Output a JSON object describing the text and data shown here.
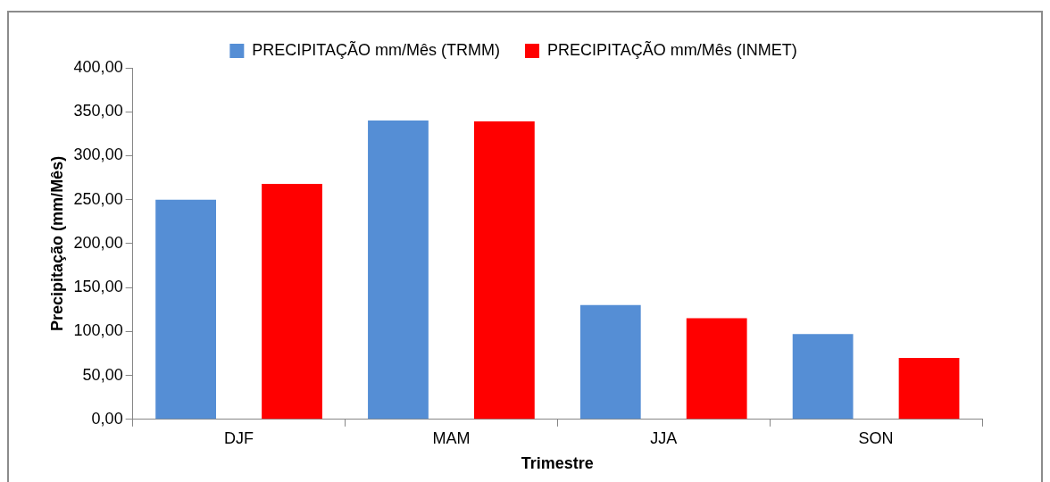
{
  "chart_data": {
    "type": "bar",
    "xlabel": "Trimestre",
    "ylabel": "Precipitação (mm/Mês)",
    "categories": [
      "DJF",
      "MAM",
      "JJA",
      "SON"
    ],
    "series": [
      {
        "name": "PRECIPITAÇÃO mm/Mês (TRMM)",
        "color": "#558ed5",
        "values": [
          250,
          340,
          130,
          97
        ]
      },
      {
        "name": "PRECIPITAÇÃO mm/Mês (INMET)",
        "color": "#ff0000",
        "values": [
          268,
          339,
          115,
          70
        ]
      }
    ],
    "ylim": [
      0,
      400
    ],
    "yticks": [
      {
        "value": 0,
        "label": "0,00"
      },
      {
        "value": 50,
        "label": "50,00"
      },
      {
        "value": 100,
        "label": "100,00"
      },
      {
        "value": 150,
        "label": "150,00"
      },
      {
        "value": 200,
        "label": "200,00"
      },
      {
        "value": 250,
        "label": "250,00"
      },
      {
        "value": 300,
        "label": "300,00"
      },
      {
        "value": 350,
        "label": "350,00"
      },
      {
        "value": 400,
        "label": "400,00"
      }
    ],
    "grid": false,
    "legend": "top"
  }
}
